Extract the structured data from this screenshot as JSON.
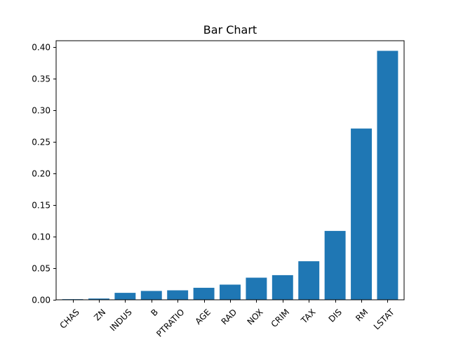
{
  "chart_data": {
    "type": "bar",
    "title": "Bar Chart",
    "xlabel": "",
    "ylabel": "",
    "categories": [
      "CHAS",
      "ZN",
      "INDUS",
      "B",
      "PTRATIO",
      "AGE",
      "RAD",
      "NOX",
      "CRIM",
      "TAX",
      "DIS",
      "RM",
      "LSTAT"
    ],
    "values": [
      0.001,
      0.002,
      0.011,
      0.014,
      0.015,
      0.019,
      0.024,
      0.035,
      0.039,
      0.061,
      0.109,
      0.271,
      0.394
    ],
    "ylim": [
      0,
      0.41
    ],
    "yticks": [
      0.0,
      0.05,
      0.1,
      0.15,
      0.2,
      0.25,
      0.3,
      0.35,
      0.4
    ],
    "ytick_labels": [
      "0.00",
      "0.05",
      "0.10",
      "0.15",
      "0.20",
      "0.25",
      "0.30",
      "0.35",
      "0.40"
    ],
    "bar_color": "#1f77b4",
    "grid": false,
    "legend": false,
    "xtick_rotation": 45
  }
}
